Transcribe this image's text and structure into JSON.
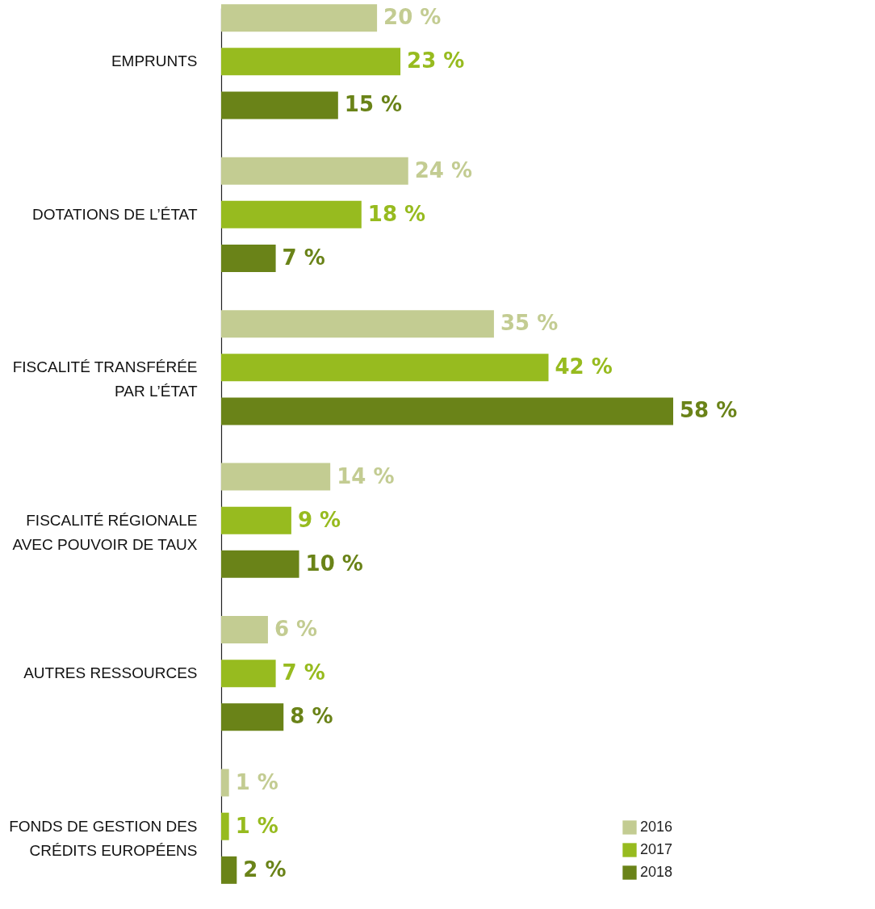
{
  "chart_data": {
    "type": "bar",
    "orientation": "horizontal",
    "categories": [
      "EMPRUNTS",
      "DOTATIONS DE L’ÉTAT",
      "FISCALITÉ TRANSFÉRÉE\nPAR L’ÉTAT",
      "FISCALITÉ RÉGIONALE\nAVEC POUVOIR DE TAUX",
      "AUTRES RESSOURCES",
      "FONDS DE GESTION DES\nCRÉDITS EUROPÉENS"
    ],
    "series": [
      {
        "name": "2016",
        "color": "#c3cc92",
        "values": [
          20,
          24,
          35,
          14,
          6,
          1
        ],
        "value_labels": [
          "20 %",
          "24 %",
          "35 %",
          "14 %",
          "6 %",
          "1 %"
        ]
      },
      {
        "name": "2017",
        "color": "#97bb1f",
        "values": [
          23,
          18,
          42,
          9,
          7,
          1
        ],
        "value_labels": [
          "23 %",
          "18 %",
          "42 %",
          "9 %",
          "7 %",
          "1 %"
        ]
      },
      {
        "name": "2018",
        "color": "#6a8318",
        "values": [
          15,
          7,
          58,
          10,
          8,
          2
        ],
        "value_labels": [
          "15 %",
          "7 %",
          "58 %",
          "10 %",
          "8 %",
          "2 %"
        ]
      }
    ],
    "xlim": [
      0,
      58
    ],
    "legend": "bottom right",
    "grid": false,
    "tick_labels": "y"
  }
}
